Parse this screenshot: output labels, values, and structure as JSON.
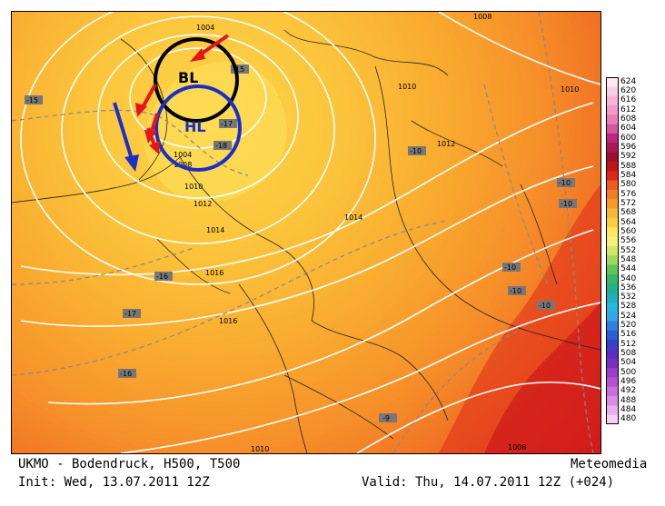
{
  "footer": {
    "model_line": "UKMO - Bodendruck, H500, T500",
    "brand": "Meteomedia",
    "init_line": "Init: Wed, 13.07.2011 12Z",
    "valid_line": "Valid: Thu, 14.07.2011 12Z (+024)"
  },
  "map": {
    "isobar_labels": [
      "1004",
      "1004",
      "1008",
      "1008",
      "1010",
      "1010",
      "1012",
      "1012",
      "1014",
      "1014",
      "1016",
      "1016",
      "1010",
      "1008",
      "1008",
      "1010"
    ],
    "temperature_labels": [
      "-15",
      "-15",
      "-17",
      "-18",
      "-16",
      "-17",
      "-16",
      "-10",
      "-10",
      "-10",
      "-10",
      "-10",
      "-10",
      "-9"
    ],
    "annotations": {
      "bl": "BL",
      "hl": "HL"
    },
    "colors": {
      "bl_circle": "#000000",
      "hl_circle": "#1a2fc8",
      "red_arrows": "#e3161c",
      "blue_arrow": "#1a2fc8",
      "isobars": "#ffffff",
      "borders": "#222222"
    }
  },
  "colorbar": {
    "labels": [
      "624",
      "620",
      "616",
      "612",
      "608",
      "604",
      "600",
      "596",
      "592",
      "588",
      "584",
      "580",
      "576",
      "572",
      "568",
      "564",
      "560",
      "556",
      "552",
      "548",
      "544",
      "540",
      "536",
      "532",
      "528",
      "524",
      "520",
      "516",
      "512",
      "508",
      "504",
      "500",
      "496",
      "492",
      "488",
      "484",
      "480"
    ],
    "colors": [
      "#fbe9f2",
      "#f7cfe3",
      "#f4b4d6",
      "#f19ac9",
      "#ea7fb7",
      "#d7559e",
      "#c0267f",
      "#b0145a",
      "#9c0f2c",
      "#c0141c",
      "#e1251a",
      "#ef5a1e",
      "#f47e22",
      "#f79a2a",
      "#fab635",
      "#fccf42",
      "#fee85a",
      "#f5f07a",
      "#cfe86c",
      "#9ed95c",
      "#61c65a",
      "#35b765",
      "#22b08c",
      "#1eb0b6",
      "#27b6dd",
      "#33a7e8",
      "#2f82df",
      "#2a5fd3",
      "#3a3fc7",
      "#5a2fbf",
      "#7b2fbf",
      "#9a3ec7",
      "#b254d1",
      "#c76fdb",
      "#d98ce4",
      "#e9aeee",
      "#f4d0f6"
    ]
  }
}
